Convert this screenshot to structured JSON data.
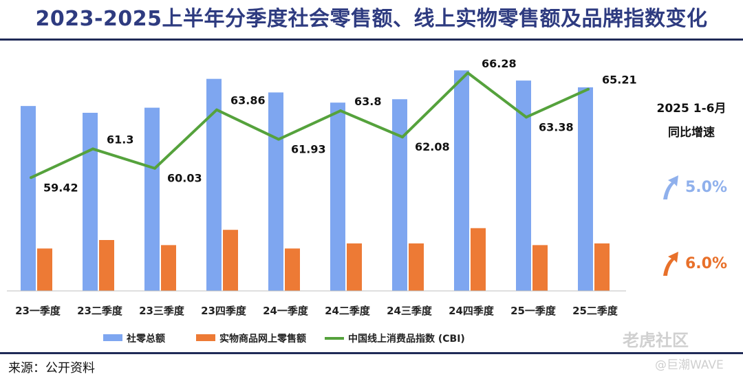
{
  "header": {
    "title": "2023-2025上半年分季度社会零售额、线上实物零售额及品牌指数变化"
  },
  "side_panel": {
    "heading_line1": "2025 1-6月",
    "heading_line2": "同比增速",
    "growth": [
      {
        "value": "5.0%",
        "color": "#8fb0ec",
        "icon": "up-arrow-icon"
      },
      {
        "value": "6.0%",
        "color": "#e8702a",
        "icon": "up-arrow-icon"
      }
    ]
  },
  "footer": {
    "source": "来源：公开资料"
  },
  "watermark": {
    "logo_text": "老虎社区",
    "handle": "@巨潮WAVE"
  },
  "colors": {
    "bar1": "#7ea6f0",
    "bar2": "#ed7a35",
    "line": "#55a23c",
    "title": "#2e3b80"
  },
  "chart_data": {
    "type": "bar",
    "categories": [
      "23一季度",
      "23二季度",
      "23三季度",
      "23四季度",
      "24一季度",
      "24二季度",
      "24三季度",
      "24四季度",
      "25一季度",
      "25二季度"
    ],
    "series": [
      {
        "name": "社零总额",
        "type": "bar",
        "axis": "left",
        "values": [
          109,
          105,
          108,
          125,
          117,
          111,
          113,
          130,
          124,
          120
        ]
      },
      {
        "name": "实物商品网上零售额",
        "type": "bar",
        "axis": "left",
        "values": [
          25,
          30,
          27,
          36,
          25,
          28,
          28,
          37,
          27,
          28
        ]
      },
      {
        "name": "中国线上消费品指数 (CBI)",
        "type": "line",
        "axis": "right",
        "values": [
          59.42,
          61.3,
          60.03,
          63.86,
          61.93,
          63.8,
          62.08,
          66.28,
          63.38,
          65.21
        ],
        "labels": [
          "59.42",
          "61.3",
          "60.03",
          "63.86",
          "61.93",
          "63.8",
          "62.08",
          "66.28",
          "63.38",
          "65.21"
        ]
      }
    ],
    "left_axis_range": [
      0,
      135
    ],
    "right_axis_range": [
      52,
      67
    ],
    "legend_position": "bottom",
    "grid": false
  }
}
